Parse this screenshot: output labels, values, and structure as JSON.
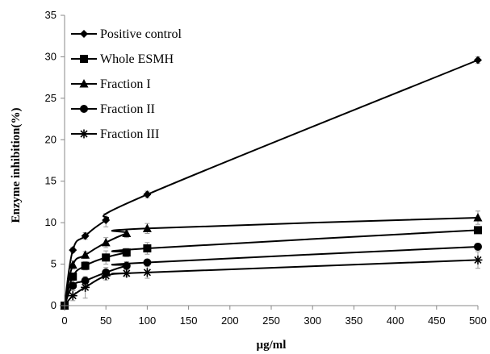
{
  "chart_data": {
    "type": "line",
    "title": "",
    "xlabel": "µg/ml",
    "ylabel": "Enzyme inhibition(%)",
    "xlim": [
      0,
      500
    ],
    "ylim": [
      0,
      35
    ],
    "xticks": [
      "0",
      "50",
      "100",
      "150",
      "200",
      "250",
      "300",
      "350",
      "400",
      "450",
      "500"
    ],
    "yticks": [
      "0",
      "5",
      "10",
      "15",
      "20",
      "25",
      "30",
      "35"
    ],
    "grid": false,
    "legend_position": "top-left",
    "x": [
      0,
      10,
      25,
      50,
      75,
      100,
      500
    ],
    "series": [
      {
        "name": "Positive control",
        "marker": "diamond",
        "values": [
          0,
          6.7,
          8.4,
          10.3,
          null,
          13.4,
          29.6
        ],
        "errors": [
          0,
          0.3,
          0.4,
          0.8,
          null,
          0.4,
          0.4
        ]
      },
      {
        "name": "Whole ESMH",
        "marker": "square",
        "values": [
          0,
          3.5,
          4.8,
          5.8,
          6.4,
          6.9,
          9.1
        ],
        "errors": [
          0,
          0.4,
          0.5,
          0.8,
          0.5,
          0.7,
          0.4
        ]
      },
      {
        "name": "Fraction I",
        "marker": "triangle",
        "values": [
          0,
          4.9,
          6.1,
          7.6,
          8.7,
          9.3,
          10.6
        ],
        "errors": [
          0,
          0.5,
          0.4,
          0.6,
          0.5,
          0.6,
          0.8
        ]
      },
      {
        "name": "Fraction II",
        "marker": "circle",
        "values": [
          0,
          2.4,
          3.0,
          4.0,
          4.8,
          5.2,
          7.1
        ],
        "errors": [
          0,
          0.6,
          0.5,
          0.6,
          0.5,
          0.4,
          0.4
        ]
      },
      {
        "name": "Fraction III",
        "marker": "star",
        "values": [
          0,
          1.2,
          2.2,
          3.6,
          3.9,
          4.0,
          5.5
        ],
        "errors": [
          0,
          0.6,
          1.3,
          0.5,
          0.4,
          0.7,
          1.0
        ]
      }
    ]
  }
}
